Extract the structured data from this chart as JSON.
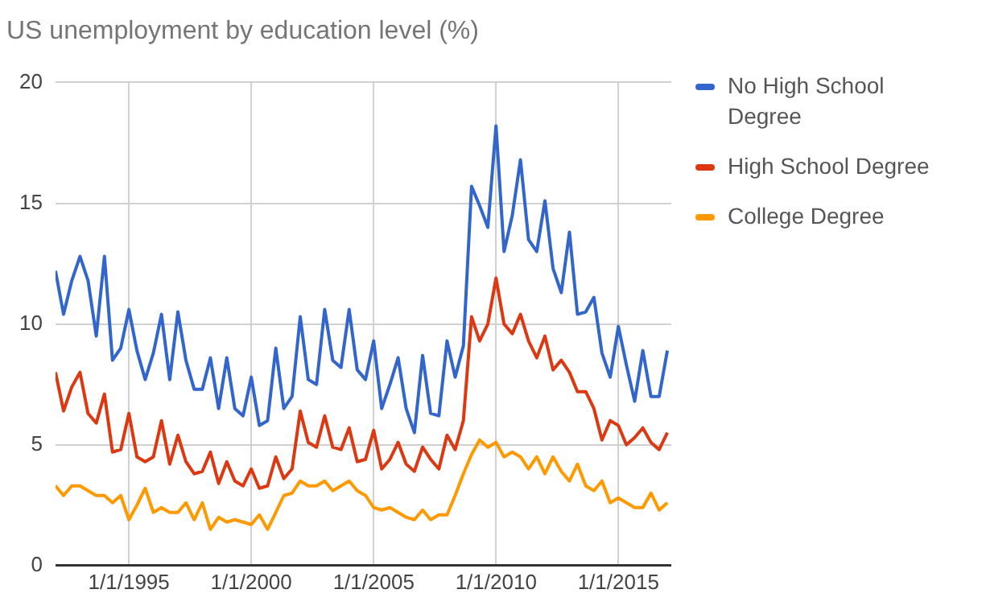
{
  "chart_data": {
    "type": "line",
    "title": "US unemployment by education level (%)",
    "x": [
      "1992-01",
      "1992-05",
      "1992-09",
      "1993-01",
      "1993-05",
      "1993-09",
      "1994-01",
      "1994-05",
      "1994-09",
      "1995-01",
      "1995-05",
      "1995-09",
      "1996-01",
      "1996-05",
      "1996-09",
      "1997-01",
      "1997-05",
      "1997-09",
      "1998-01",
      "1998-05",
      "1998-09",
      "1999-01",
      "1999-05",
      "1999-09",
      "2000-01",
      "2000-05",
      "2000-09",
      "2001-01",
      "2001-05",
      "2001-09",
      "2002-01",
      "2002-05",
      "2002-09",
      "2003-01",
      "2003-05",
      "2003-09",
      "2004-01",
      "2004-05",
      "2004-09",
      "2005-01",
      "2005-05",
      "2005-09",
      "2006-01",
      "2006-05",
      "2006-09",
      "2007-01",
      "2007-05",
      "2007-09",
      "2008-01",
      "2008-05",
      "2008-09",
      "2009-01",
      "2009-05",
      "2009-09",
      "2010-01",
      "2010-05",
      "2010-09",
      "2011-01",
      "2011-05",
      "2011-09",
      "2012-01",
      "2012-05",
      "2012-09",
      "2013-01",
      "2013-05",
      "2013-09",
      "2014-01",
      "2014-05",
      "2014-09",
      "2015-01",
      "2015-05",
      "2015-09",
      "2016-01",
      "2016-05",
      "2016-09",
      "2017-01"
    ],
    "series": [
      {
        "name": "No High School Degree",
        "color": "#3366cc",
        "values": [
          12.2,
          10.4,
          11.8,
          12.8,
          11.8,
          9.5,
          12.8,
          8.5,
          9.0,
          10.6,
          8.9,
          7.7,
          8.8,
          10.4,
          7.7,
          10.5,
          8.5,
          7.3,
          7.3,
          8.6,
          6.5,
          8.6,
          6.5,
          6.2,
          7.8,
          5.8,
          6.0,
          9.0,
          6.5,
          7.0,
          10.3,
          7.7,
          7.5,
          10.6,
          8.5,
          8.2,
          10.6,
          8.1,
          7.7,
          9.3,
          6.5,
          7.5,
          8.6,
          6.5,
          5.5,
          8.7,
          6.3,
          6.2,
          9.3,
          7.8,
          9.1,
          15.7,
          14.9,
          14.0,
          18.2,
          13.0,
          14.5,
          16.8,
          13.5,
          13.0,
          15.1,
          12.3,
          11.3,
          13.8,
          10.4,
          10.5,
          11.1,
          8.8,
          7.8,
          9.9,
          8.3,
          6.8,
          8.9,
          7.0,
          7.0,
          8.9
        ]
      },
      {
        "name": "High School Degree",
        "color": "#dc3912",
        "values": [
          8.0,
          6.4,
          7.4,
          8.0,
          6.3,
          5.9,
          7.1,
          4.7,
          4.8,
          6.3,
          4.5,
          4.3,
          4.5,
          6.0,
          4.2,
          5.4,
          4.3,
          3.8,
          3.9,
          4.7,
          3.4,
          4.3,
          3.5,
          3.3,
          4.0,
          3.2,
          3.3,
          4.5,
          3.6,
          4.0,
          6.4,
          5.1,
          4.9,
          6.2,
          4.9,
          4.8,
          5.7,
          4.3,
          4.4,
          5.6,
          4.0,
          4.4,
          5.1,
          4.2,
          3.9,
          4.9,
          4.4,
          4.0,
          5.4,
          4.8,
          6.0,
          10.3,
          9.3,
          10.0,
          11.9,
          10.0,
          9.6,
          10.4,
          9.3,
          8.6,
          9.5,
          8.1,
          8.5,
          8.0,
          7.2,
          7.2,
          6.5,
          5.2,
          6.0,
          5.8,
          5.0,
          5.3,
          5.7,
          5.1,
          4.8,
          5.5
        ]
      },
      {
        "name": "College Degree",
        "color": "#ff9900",
        "values": [
          3.3,
          2.9,
          3.3,
          3.3,
          3.1,
          2.9,
          2.9,
          2.6,
          2.9,
          1.9,
          2.5,
          3.2,
          2.2,
          2.4,
          2.2,
          2.2,
          2.6,
          1.9,
          2.6,
          1.5,
          2.0,
          1.8,
          1.9,
          1.8,
          1.7,
          2.1,
          1.5,
          2.2,
          2.9,
          3.0,
          3.5,
          3.3,
          3.3,
          3.5,
          3.1,
          3.3,
          3.5,
          3.1,
          2.9,
          2.4,
          2.3,
          2.4,
          2.2,
          2.0,
          1.9,
          2.3,
          1.9,
          2.1,
          2.1,
          2.9,
          3.8,
          4.6,
          5.2,
          4.9,
          5.1,
          4.5,
          4.7,
          4.5,
          4.0,
          4.5,
          3.8,
          4.5,
          3.9,
          3.5,
          4.2,
          3.3,
          3.1,
          3.5,
          2.6,
          2.8,
          2.6,
          2.4,
          2.4,
          3.0,
          2.3,
          2.6
        ]
      }
    ],
    "xlim": [
      "1992-01",
      "2017-03"
    ],
    "xticks": [
      {
        "value": "1995-01-01",
        "label": "1/1/1995"
      },
      {
        "value": "2000-01-01",
        "label": "1/1/2000"
      },
      {
        "value": "2005-01-01",
        "label": "1/1/2005"
      },
      {
        "value": "2010-01-01",
        "label": "1/1/2010"
      },
      {
        "value": "2015-01-01",
        "label": "1/1/2015"
      }
    ],
    "ylim": [
      0,
      20
    ],
    "yticks": [
      0,
      5,
      10,
      15,
      20
    ],
    "grid": true,
    "legend": "right",
    "marker": "none",
    "line_style": "solid"
  }
}
